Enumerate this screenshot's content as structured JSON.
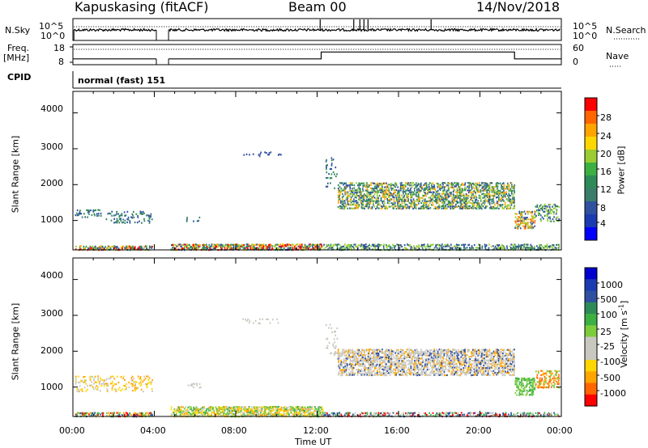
{
  "header": {
    "station": "Kapuskasing (fitACF)",
    "beam": "Beam 00",
    "date": "14/Nov/2018"
  },
  "left_labels": {
    "nsky": "N.Sky",
    "freq": "Freq.",
    "mhz": "[MHz]",
    "cpid": "CPID"
  },
  "right_labels": {
    "nsearch": "N.Search",
    "nave": "Nave"
  },
  "cpid_text": "normal (fast) 151",
  "colors": {
    "line": "#000000",
    "background": "#ffffff",
    "missing": "#ffffff"
  },
  "chart_data": [
    {
      "type": "line",
      "panel": "noise",
      "left_axis_ticks": [
        "10^5",
        "10^0"
      ],
      "right_axis_ticks": [
        "10^5",
        "10^0"
      ],
      "series": [
        {
          "name": "N.Sky",
          "style": "solid"
        },
        {
          "name": "N.Search",
          "style": "dotted"
        }
      ],
      "x_hours": [
        0,
        4.1,
        4.6,
        24
      ],
      "nsky_log": [
        4.6,
        4.6,
        4.6,
        4.6
      ],
      "data_gap_hours": [
        4.1,
        4.7
      ],
      "spike_hours": [
        12.15,
        13.8,
        14.1,
        14.3,
        14.5,
        17.6
      ]
    },
    {
      "type": "line",
      "panel": "frequency",
      "left_axis_ticks": [
        "18",
        "8"
      ],
      "right_axis_ticks": [
        "60",
        "0"
      ],
      "series": [
        {
          "name": "Freq.",
          "style": "solid",
          "segments": [
            [
              0,
              10.5
            ],
            [
              4.1,
              10.5
            ],
            [
              4.7,
              10.5
            ],
            [
              12.2,
              10.5
            ],
            [
              12.2,
              14.5
            ],
            [
              21.7,
              14.5
            ],
            [
              21.7,
              10.5
            ],
            [
              24,
              10.5
            ]
          ]
        },
        {
          "name": "Nave",
          "style": "dotted",
          "segments": [
            [
              0,
              14
            ],
            [
              24,
              14
            ]
          ]
        }
      ],
      "data_gap_hours": [
        4.1,
        4.7
      ]
    },
    {
      "type": "heatmap",
      "panel": "power",
      "ylabel": "Slant Range [km]",
      "yticks": [
        "4000",
        "3000",
        "2000",
        "1000"
      ],
      "ylim": [
        180,
        4600
      ],
      "xlim": [
        0,
        24
      ],
      "colorbar": {
        "label": "Power [dB]",
        "ticks": [
          "28",
          "24",
          "20",
          "16",
          "12",
          "8",
          "4"
        ],
        "colors": [
          "#ff0000",
          "#ff6600",
          "#ffa500",
          "#ffd700",
          "#9acd32",
          "#3cb043",
          "#2e8b57",
          "#3a7d6b",
          "#3050a0",
          "#1a3cb0",
          "#0000ff"
        ]
      },
      "regions": [
        {
          "hours": [
            0.1,
            3.9
          ],
          "range_km": [
            200,
            330
          ],
          "mix": [
            "#3050a0",
            "#2e8b57",
            "#9acd32",
            "#ffa500",
            "#ff0000"
          ],
          "density": 0.7
        },
        {
          "hours": [
            4.8,
            12.3
          ],
          "range_km": [
            200,
            380
          ],
          "mix": [
            "#3050a0",
            "#2e8b57",
            "#9acd32",
            "#ffa500",
            "#ff0000"
          ],
          "density": 0.8
        },
        {
          "hours": [
            12.3,
            23.9
          ],
          "range_km": [
            200,
            380
          ],
          "mix": [
            "#3050a0",
            "#2e8b57",
            "#9acd32"
          ],
          "density": 0.55
        },
        {
          "hours": [
            0.1,
            1.4
          ],
          "range_km": [
            1100,
            1350
          ],
          "mix": [
            "#3050a0",
            "#2e8b57"
          ],
          "density": 0.35
        },
        {
          "hours": [
            1.6,
            3.9
          ],
          "range_km": [
            950,
            1300
          ],
          "mix": [
            "#3050a0",
            "#2e8b57",
            "#3a7d6b"
          ],
          "density": 0.3
        },
        {
          "hours": [
            5.5,
            6.3
          ],
          "range_km": [
            1000,
            1150
          ],
          "mix": [
            "#3050a0",
            "#2e8b57"
          ],
          "density": 0.25
        },
        {
          "hours": [
            8.3,
            10.3
          ],
          "range_km": [
            2800,
            2950
          ],
          "mix": [
            "#3050a0"
          ],
          "density": 0.15
        },
        {
          "hours": [
            12.4,
            13.0
          ],
          "range_km": [
            1900,
            2800
          ],
          "mix": [
            "#3050a0",
            "#2e8b57"
          ],
          "density": 0.2
        },
        {
          "hours": [
            13.0,
            21.7
          ],
          "range_km": [
            1350,
            2100
          ],
          "mix": [
            "#2e8b57",
            "#3a7d6b",
            "#9acd32",
            "#ffa500",
            "#3050a0"
          ],
          "density": 0.65
        },
        {
          "hours": [
            21.7,
            22.7
          ],
          "range_km": [
            800,
            1300
          ],
          "mix": [
            "#ffa500",
            "#ff6600",
            "#9acd32",
            "#3050a0"
          ],
          "density": 0.6
        },
        {
          "hours": [
            22.7,
            23.9
          ],
          "range_km": [
            1000,
            1500
          ],
          "mix": [
            "#2e8b57",
            "#3050a0",
            "#9acd32"
          ],
          "density": 0.45
        }
      ]
    },
    {
      "type": "heatmap",
      "panel": "velocity",
      "ylabel": "Slant Range [km]",
      "yticks": [
        "4000",
        "3000",
        "2000",
        "1000"
      ],
      "ylim": [
        180,
        4600
      ],
      "xlim": [
        0,
        24
      ],
      "xticks": [
        "00:00",
        "04:00",
        "08:00",
        "12:00",
        "16:00",
        "20:00",
        "00:00"
      ],
      "xlabel": "Time UT",
      "colorbar": {
        "label": "Velocity [m s",
        "label_superscript": "-1",
        "label_close": "]",
        "ticks": [
          "1000",
          "500",
          "100",
          "25",
          "-25",
          "-100",
          "-500",
          "-1000"
        ],
        "colors": [
          "#0000cd",
          "#1a3cb0",
          "#3050a0",
          "#2e8b57",
          "#3cb043",
          "#7ccd3c",
          "#c8c8c0",
          "#c8c8c0",
          "#ffd700",
          "#ffa500",
          "#ff6600",
          "#ff0000"
        ]
      },
      "regions": [
        {
          "hours": [
            0.1,
            3.9
          ],
          "range_km": [
            200,
            330
          ],
          "mix": [
            "#3cb043",
            "#7ccd3c",
            "#ffa500",
            "#3050a0",
            "#ff0000"
          ],
          "density": 0.6
        },
        {
          "hours": [
            4.8,
            12.3
          ],
          "range_km": [
            200,
            500
          ],
          "mix": [
            "#7ccd3c",
            "#3cb043",
            "#c8c8c0",
            "#ffd700",
            "#ffa500"
          ],
          "density": 0.8
        },
        {
          "hours": [
            12.3,
            23.9
          ],
          "range_km": [
            200,
            330
          ],
          "mix": [
            "#3cb043",
            "#c8c8c0",
            "#3050a0",
            "#ff0000"
          ],
          "density": 0.5
        },
        {
          "hours": [
            0.1,
            3.9
          ],
          "range_km": [
            900,
            1350
          ],
          "mix": [
            "#c8c8c0",
            "#ffd700",
            "#ffa500"
          ],
          "density": 0.3
        },
        {
          "hours": [
            5.5,
            6.3
          ],
          "range_km": [
            1000,
            1150
          ],
          "mix": [
            "#c8c8c0"
          ],
          "density": 0.25
        },
        {
          "hours": [
            8.3,
            10.3
          ],
          "range_km": [
            2800,
            2950
          ],
          "mix": [
            "#c8c8c0"
          ],
          "density": 0.15
        },
        {
          "hours": [
            12.4,
            13.0
          ],
          "range_km": [
            1900,
            2800
          ],
          "mix": [
            "#c8c8c0"
          ],
          "density": 0.2
        },
        {
          "hours": [
            13.0,
            21.7
          ],
          "range_km": [
            1350,
            2100
          ],
          "mix": [
            "#c8c8c0",
            "#c8c8c0",
            "#c8c8c0",
            "#3050a0",
            "#ffa500"
          ],
          "density": 0.7
        },
        {
          "hours": [
            21.7,
            22.7
          ],
          "range_km": [
            800,
            1300
          ],
          "mix": [
            "#7ccd3c",
            "#3cb043"
          ],
          "density": 0.6
        },
        {
          "hours": [
            22.7,
            23.9
          ],
          "range_km": [
            1000,
            1500
          ],
          "mix": [
            "#ffa500",
            "#ff6600",
            "#7ccd3c"
          ],
          "density": 0.5
        }
      ]
    }
  ]
}
